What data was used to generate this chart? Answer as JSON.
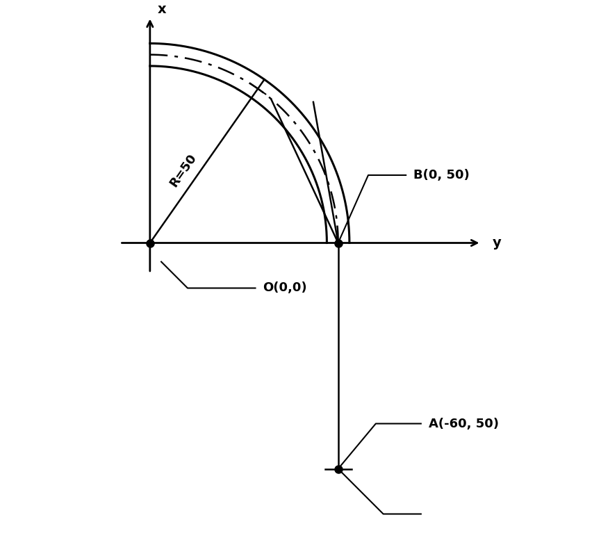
{
  "background_color": "#ffffff",
  "R": 50,
  "origin_label": "O(0,0)",
  "point_B_label": "B(0, 50)",
  "point_A_label": "A(-60, 50)",
  "radius_label": "R=50",
  "fig_width": 8.65,
  "fig_height": 7.87,
  "lw_axis": 2.0,
  "lw_curve": 2.2,
  "lw_dash": 1.8,
  "dot_size": 8,
  "fontsize_label": 13,
  "fontsize_axis": 14,
  "xlim": [
    -10,
    90
  ],
  "ylim": [
    -80,
    62
  ]
}
